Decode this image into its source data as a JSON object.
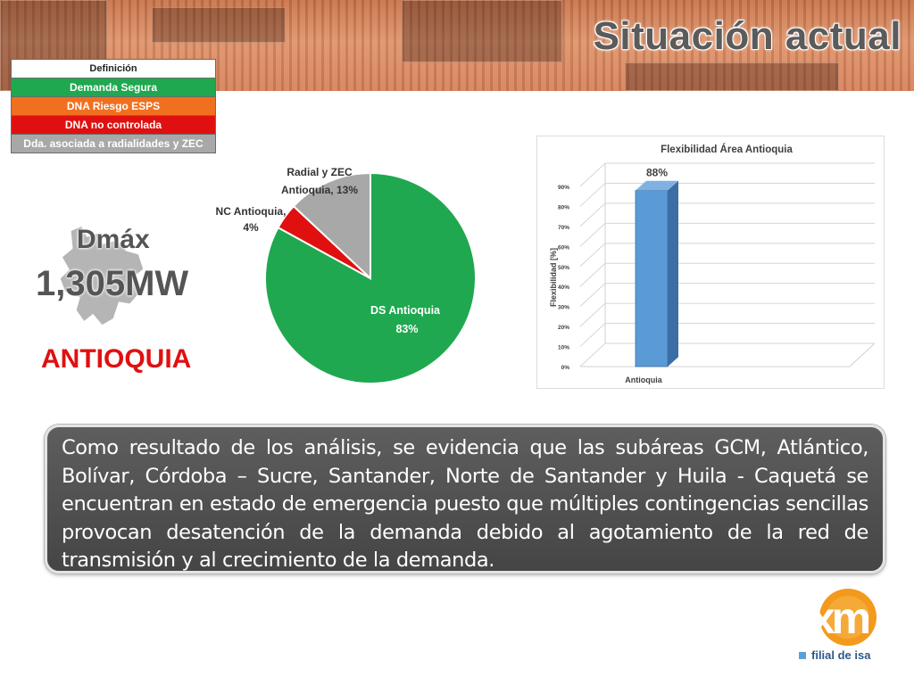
{
  "header": {
    "title": "Situación actual"
  },
  "legend_table": {
    "header": "Definición",
    "rows": [
      {
        "label": "Demanda Segura",
        "color": "#1fa84f"
      },
      {
        "label": "DNA Riesgo ESPS",
        "color": "#f07020"
      },
      {
        "label": "DNA no controlada",
        "color": "#e01010"
      },
      {
        "label": "Dda. asociada a radialidades y ZEC",
        "color": "#a8a8a8"
      }
    ]
  },
  "info": {
    "dmax_label": "Dmáx",
    "dmax_value": "1,305MW",
    "region": "ANTIOQUIA"
  },
  "chart_data": [
    {
      "type": "pie",
      "title": "",
      "slices": [
        {
          "label_line1": "DS Antioquia",
          "label_line2": "83%",
          "value": 83,
          "color": "#1fa84f"
        },
        {
          "label_line1": "NC Antioquia,",
          "label_line2": "4%",
          "value": 4,
          "color": "#e01010"
        },
        {
          "label_line1": "Radial y ZEC",
          "label_line2": "Antioquia, 13%",
          "value": 13,
          "color": "#a8a8a8"
        }
      ]
    },
    {
      "type": "bar",
      "title": "Flexibilidad Área Antioquia",
      "ylabel": "Flexibilidad [%]",
      "xlabel": "",
      "categories": [
        "Antioquia"
      ],
      "values": [
        88
      ],
      "data_labels": [
        "88%"
      ],
      "ylim": [
        0,
        90
      ],
      "yticks": [
        "0%",
        "10%",
        "20%",
        "30%",
        "40%",
        "50%",
        "60%",
        "70%",
        "80%",
        "90%"
      ],
      "grid": true,
      "color": "#5b9bd5"
    }
  ],
  "callout": {
    "text": "Como resultado de los análisis, se evidencia que las subáreas GCM, Atlántico, Bolívar, Córdoba – Sucre, Santander, Norte de Santander y Huila - Caquetá se encuentran en estado de emergencia puesto que múltiples contingencias sencillas provocan desatención de la demanda debido al agotamiento de la red de transmisión y al crecimiento de la demanda."
  },
  "logo": {
    "text": "xm",
    "subtitle": "filial de isa"
  }
}
